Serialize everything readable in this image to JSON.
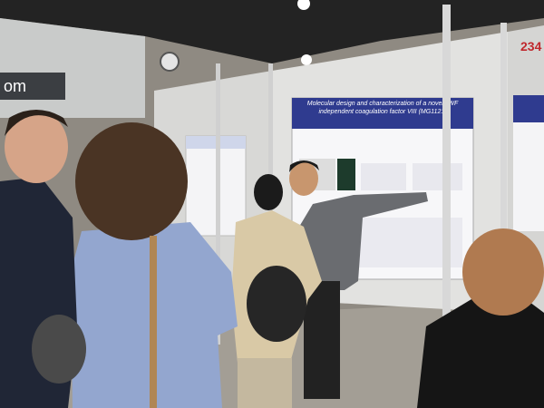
{
  "sign": {
    "text": "om"
  },
  "poster_number": "234",
  "main_poster": {
    "title": "Molecular design and characterization of a novel vWF independent coagulation factor VIII (MG1121)"
  }
}
